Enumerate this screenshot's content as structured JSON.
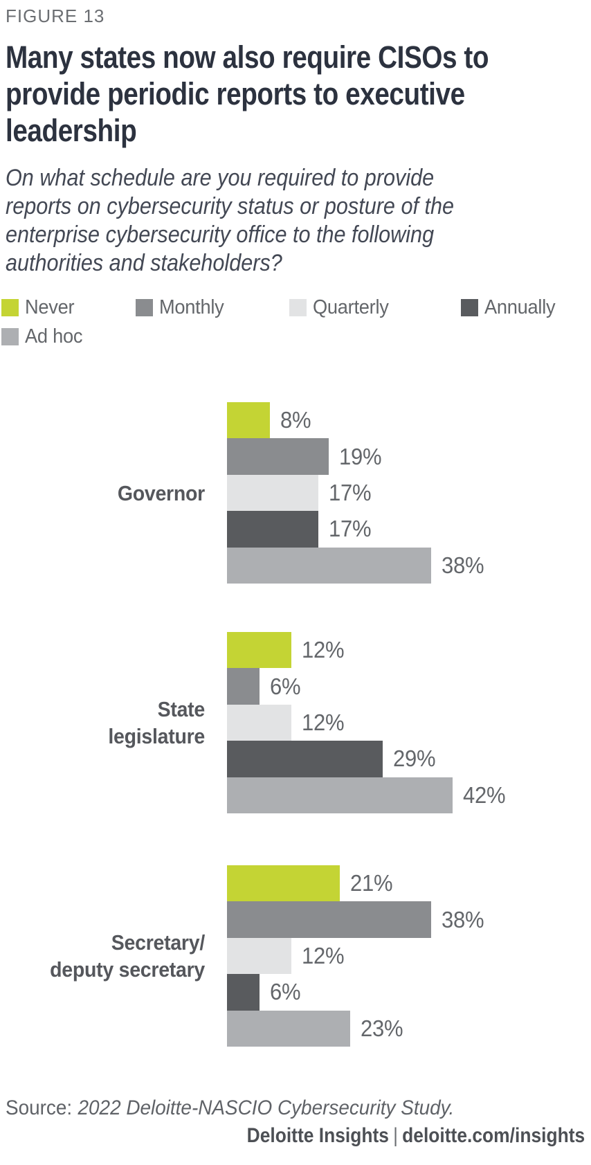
{
  "figure_label": "FIGURE 13",
  "title": "Many states now also require CISOs to provide periodic reports to executive leadership",
  "title_lines": [
    "Many states now also require CISOs to",
    "provide periodic reports to executive",
    "leadership"
  ],
  "subtitle": "On what schedule are you required to provide reports on cybersecurity status or posture of the enterprise cybersecurity office to the following authorities and stakeholders?",
  "subtitle_lines": [
    "On what schedule are you required to provide",
    "reports on cybersecurity status or posture of the",
    "enterprise cybersecurity office to the following",
    "authorities and stakeholders?"
  ],
  "legend": {
    "items": [
      {
        "label": "Never",
        "color": "#c4d434"
      },
      {
        "label": "Monthly",
        "color": "#8a8c8f"
      },
      {
        "label": "Quarterly",
        "color": "#e2e3e4"
      },
      {
        "label": "Annually",
        "color": "#595b5e"
      },
      {
        "label": "Ad hoc",
        "color": "#adafb2"
      }
    ]
  },
  "chart_data": {
    "type": "bar",
    "orientation": "horizontal",
    "unit": "%",
    "value_range": [
      0,
      42
    ],
    "grid": false,
    "data_labels": true,
    "legend_position": "top",
    "series": [
      "Never",
      "Monthly",
      "Quarterly",
      "Annually",
      "Ad hoc"
    ],
    "series_colors": [
      "#c4d434",
      "#8a8c8f",
      "#e2e3e4",
      "#595b5e",
      "#adafb2"
    ],
    "categories": [
      "Governor",
      "State legislature",
      "Secretary/deputy secretary"
    ],
    "groups": [
      {
        "category": "Governor",
        "label_lines": [
          "Governor"
        ],
        "values": [
          8,
          19,
          17,
          17,
          38
        ]
      },
      {
        "category": "State legislature",
        "label_lines": [
          "State",
          "legislature"
        ],
        "values": [
          12,
          6,
          12,
          29,
          42
        ]
      },
      {
        "category": "Secretary/deputy secretary",
        "label_lines": [
          "Secretary/",
          "deputy secretary"
        ],
        "values": [
          21,
          38,
          12,
          6,
          23
        ]
      }
    ]
  },
  "footer": {
    "source_prefix": "Source:",
    "source_text": "2022 Deloitte-NASCIO Cybersecurity Study.",
    "brand_left": "Deloitte Insights",
    "brand_separator": "|",
    "brand_right": "deloitte.com/insights"
  },
  "colors": {
    "title": "#2c323f",
    "figure_label": "#6b6e72",
    "subtitle": "#434854",
    "text_gray": "#63666a",
    "group_label": "#55575c",
    "background": "#ffffff"
  }
}
